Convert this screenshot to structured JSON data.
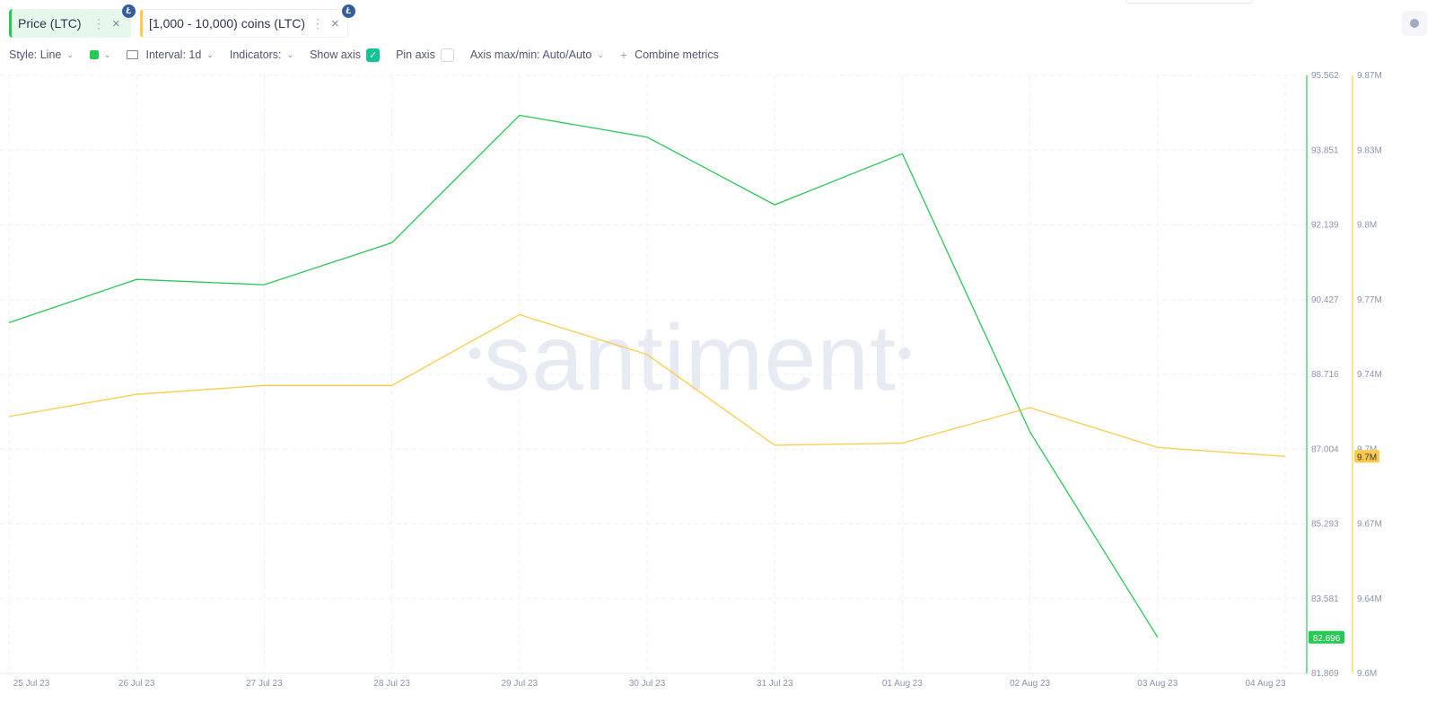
{
  "metrics": [
    {
      "label": "Price (LTC)",
      "color": "#26c953",
      "badge": "Ł",
      "more_icon": "dots-vertical-icon",
      "close_icon": "close-icon"
    },
    {
      "label": "[1,000 - 10,000) coins (LTC)",
      "color": "#ffcb47",
      "badge": "Ł",
      "more_icon": "dots-vertical-icon",
      "close_icon": "close-icon"
    }
  ],
  "toolbar": {
    "style": "Style: Line",
    "interval": "Interval: 1d",
    "indicators": "Indicators:",
    "show_axis": "Show axis",
    "show_axis_checked": true,
    "pin_axis": "Pin axis",
    "pin_axis_checked": false,
    "axis_maxmin": "Axis max/min: Auto/Auto",
    "combine": "Combine metrics"
  },
  "watermark": "santiment",
  "chart_data": {
    "type": "line",
    "x": [
      "25 Jul 23",
      "26 Jul 23",
      "27 Jul 23",
      "28 Jul 23",
      "29 Jul 23",
      "30 Jul 23",
      "31 Jul 23",
      "01 Aug 23",
      "02 Aug 23",
      "03 Aug 23",
      "04 Aug 23"
    ],
    "grid": true,
    "series": [
      {
        "name": "Price (LTC)",
        "color": "#26c953",
        "axis": "left-scale",
        "values": [
          89.9,
          90.89,
          90.77,
          91.73,
          94.65,
          94.15,
          92.6,
          93.77,
          87.4,
          82.696,
          null
        ],
        "last_value_label": "82.696"
      },
      {
        "name": "[1,000 - 10,000) coins (LTC)",
        "color": "#ffcb47",
        "axis": "right-scale",
        "values": [
          9716000,
          9726000,
          9730000,
          9730000,
          9762000,
          9744000,
          9703000,
          9704000,
          9720000,
          9702000,
          9698000
        ],
        "last_value_label": "9.7M"
      }
    ],
    "axis_price": {
      "min": 81.869,
      "max": 95.562,
      "ticks": [
        "95.562",
        "93.851",
        "92.139",
        "90.427",
        "88.716",
        "87.004",
        "85.293",
        "83.581",
        "81.869"
      ]
    },
    "axis_coins": {
      "min": 9600000,
      "max": 9870000,
      "ticks": [
        "9.87M",
        "9.83M",
        "9.8M",
        "9.77M",
        "9.74M",
        "9.7M",
        "9.67M",
        "9.64M",
        "9.6M"
      ]
    }
  }
}
